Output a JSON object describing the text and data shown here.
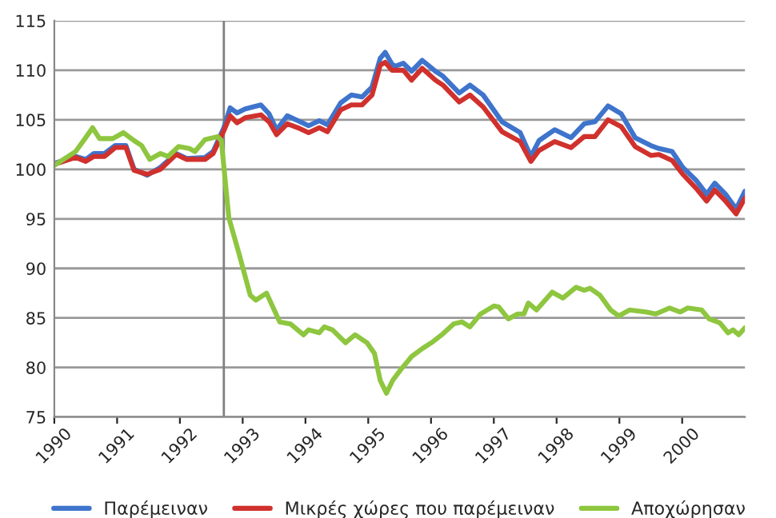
{
  "chart_data": {
    "type": "line",
    "xlim": [
      1990,
      2001
    ],
    "xticks": [
      1990,
      1991,
      1992,
      1993,
      1994,
      1995,
      1996,
      1997,
      1998,
      1999,
      2000
    ],
    "ylim": [
      75,
      115
    ],
    "yticks": [
      75,
      80,
      85,
      90,
      95,
      100,
      105,
      110,
      115
    ],
    "grid": "y",
    "legend": "bottom",
    "line_style": "solid",
    "marker": "none",
    "ref_lines": [
      {
        "axis": "x",
        "value": 1992.7,
        "color": "#808080"
      }
    ],
    "series": [
      {
        "name": "Παρέμειναν",
        "color": "#3f74cc",
        "x": [
          1990.0,
          1990.34,
          1990.5,
          1990.63,
          1990.8,
          1990.97,
          1991.14,
          1991.27,
          1991.48,
          1991.69,
          1991.94,
          1992.11,
          1992.4,
          1992.53,
          1992.7,
          1992.8,
          1992.91,
          1993.04,
          1993.29,
          1993.42,
          1993.54,
          1993.71,
          1993.88,
          1994.05,
          1994.22,
          1994.35,
          1994.56,
          1994.73,
          1994.9,
          1995.06,
          1995.19,
          1995.27,
          1995.38,
          1995.43,
          1995.56,
          1995.69,
          1995.86,
          1996.07,
          1996.19,
          1996.45,
          1996.62,
          1996.83,
          1997.13,
          1997.42,
          1997.59,
          1997.72,
          1997.97,
          1998.23,
          1998.44,
          1998.61,
          1998.82,
          1999.03,
          1999.25,
          1999.5,
          1999.63,
          1999.84,
          2000.01,
          2000.22,
          2000.39,
          2000.52,
          2000.69,
          2000.86,
          2001.0
        ],
        "values": [
          100.6,
          101.3,
          101.0,
          101.6,
          101.6,
          102.4,
          102.4,
          100.0,
          99.4,
          100.2,
          101.6,
          101.1,
          101.2,
          101.8,
          104.2,
          106.2,
          105.7,
          106.1,
          106.5,
          105.6,
          104.0,
          105.4,
          104.9,
          104.4,
          104.9,
          104.5,
          106.7,
          107.5,
          107.3,
          108.3,
          111.2,
          111.8,
          110.6,
          110.4,
          110.7,
          109.9,
          111.0,
          109.9,
          109.4,
          107.7,
          108.5,
          107.5,
          104.8,
          103.7,
          101.3,
          102.9,
          104.0,
          103.2,
          104.6,
          104.8,
          106.4,
          105.6,
          103.2,
          102.4,
          102.1,
          101.8,
          100.2,
          98.9,
          97.5,
          98.6,
          97.5,
          96.0,
          97.8
        ]
      },
      {
        "name": "Μικρές χώρες που παρέμειναν",
        "color": "#d0312d",
        "x": [
          1990.0,
          1990.34,
          1990.5,
          1990.63,
          1990.8,
          1990.97,
          1991.14,
          1991.27,
          1991.48,
          1991.69,
          1991.94,
          1992.11,
          1992.4,
          1992.53,
          1992.7,
          1992.8,
          1992.91,
          1993.04,
          1993.29,
          1993.42,
          1993.54,
          1993.71,
          1993.88,
          1994.05,
          1994.22,
          1994.35,
          1994.56,
          1994.73,
          1994.9,
          1995.06,
          1995.19,
          1995.27,
          1995.38,
          1995.43,
          1995.56,
          1995.69,
          1995.86,
          1996.07,
          1996.19,
          1996.45,
          1996.62,
          1996.83,
          1997.13,
          1997.42,
          1997.59,
          1997.72,
          1997.97,
          1998.23,
          1998.44,
          1998.61,
          1998.82,
          1999.03,
          1999.25,
          1999.5,
          1999.63,
          1999.84,
          2000.01,
          2000.22,
          2000.39,
          2000.52,
          2000.69,
          2000.86,
          2001.0
        ],
        "values": [
          100.5,
          101.2,
          100.8,
          101.3,
          101.3,
          102.2,
          102.2,
          99.9,
          99.5,
          100.0,
          101.5,
          101.0,
          101.0,
          101.6,
          103.9,
          105.4,
          104.7,
          105.2,
          105.5,
          104.8,
          103.5,
          104.6,
          104.2,
          103.7,
          104.2,
          103.8,
          106.0,
          106.5,
          106.5,
          107.5,
          110.5,
          110.8,
          110.0,
          110.0,
          110.0,
          109.0,
          110.2,
          109.0,
          108.5,
          106.8,
          107.5,
          106.3,
          103.8,
          102.8,
          100.8,
          101.9,
          102.8,
          102.2,
          103.3,
          103.3,
          105.0,
          104.3,
          102.3,
          101.4,
          101.5,
          100.9,
          99.5,
          98.1,
          96.8,
          97.9,
          96.8,
          95.5,
          97.1
        ]
      },
      {
        "name": "Αποχώρησαν",
        "color": "#8ec63f",
        "x": [
          1990.0,
          1990.34,
          1990.5,
          1990.61,
          1990.72,
          1990.93,
          1991.1,
          1991.27,
          1991.39,
          1991.52,
          1991.69,
          1991.81,
          1991.98,
          1992.15,
          1992.24,
          1992.4,
          1992.6,
          1992.66,
          1992.78,
          1992.95,
          1993.12,
          1993.21,
          1993.38,
          1993.59,
          1993.76,
          1993.97,
          1994.05,
          1994.22,
          1994.3,
          1994.43,
          1994.64,
          1994.79,
          1994.98,
          1995.1,
          1995.19,
          1995.29,
          1995.39,
          1995.52,
          1995.69,
          1995.86,
          1996.03,
          1996.19,
          1996.36,
          1996.49,
          1996.62,
          1996.79,
          1997.0,
          1997.08,
          1997.23,
          1997.38,
          1997.48,
          1997.55,
          1997.68,
          1997.93,
          1998.1,
          1998.31,
          1998.44,
          1998.53,
          1998.69,
          1998.86,
          1998.99,
          1999.16,
          1999.42,
          1999.58,
          1999.8,
          1999.97,
          2000.09,
          2000.31,
          2000.43,
          2000.6,
          2000.73,
          2000.81,
          2000.9,
          2001.0
        ],
        "values": [
          100.4,
          101.8,
          103.2,
          104.2,
          103.1,
          103.1,
          103.7,
          102.9,
          102.4,
          101.0,
          101.6,
          101.3,
          102.3,
          102.1,
          101.8,
          103.0,
          103.3,
          102.9,
          95.1,
          91.3,
          87.3,
          86.8,
          87.5,
          84.6,
          84.4,
          83.3,
          83.8,
          83.5,
          84.1,
          83.8,
          82.5,
          83.3,
          82.5,
          81.4,
          78.7,
          77.4,
          78.7,
          79.8,
          81.1,
          81.9,
          82.6,
          83.4,
          84.4,
          84.6,
          84.1,
          85.4,
          86.2,
          86.1,
          84.9,
          85.4,
          85.4,
          86.5,
          85.8,
          87.6,
          87.0,
          88.1,
          87.8,
          88.0,
          87.3,
          85.8,
          85.2,
          85.8,
          85.6,
          85.4,
          86.0,
          85.6,
          86.0,
          85.8,
          84.9,
          84.5,
          83.5,
          83.8,
          83.3,
          84.0
        ]
      }
    ]
  }
}
